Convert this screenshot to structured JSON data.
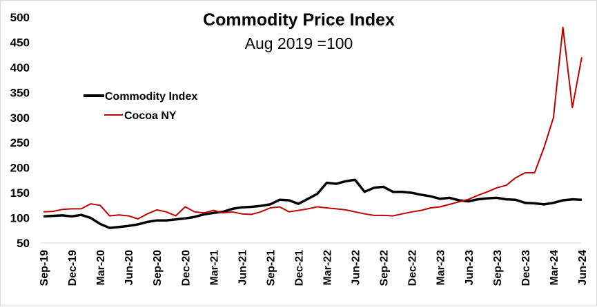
{
  "chart_data": {
    "type": "line",
    "title": "Commodity Price Index",
    "subtitle": "Aug 2019 =100",
    "xlabel": "",
    "ylabel": "",
    "ylim": [
      50,
      500
    ],
    "yticks": [
      "50",
      "100",
      "150",
      "200",
      "250",
      "300",
      "350",
      "400",
      "450",
      "500"
    ],
    "xticks": [
      "Sep-19",
      "Dec-19",
      "Mar-20",
      "Jun-20",
      "Sep-20",
      "Dec-20",
      "Mar-21",
      "Jun-21",
      "Sep-21",
      "Dec-21",
      "Mar-22",
      "Jun-22",
      "Sep-22",
      "Dec-22",
      "Mar-23",
      "Jun-23",
      "Sep-23",
      "Dec-23",
      "Mar-24",
      "Jun-24"
    ],
    "grid": false,
    "legend_position": "upper-left",
    "x": [
      "2019-09",
      "2019-10",
      "2019-11",
      "2019-12",
      "2020-01",
      "2020-02",
      "2020-03",
      "2020-04",
      "2020-05",
      "2020-06",
      "2020-07",
      "2020-08",
      "2020-09",
      "2020-10",
      "2020-11",
      "2020-12",
      "2021-01",
      "2021-02",
      "2021-03",
      "2021-04",
      "2021-05",
      "2021-06",
      "2021-07",
      "2021-08",
      "2021-09",
      "2021-10",
      "2021-11",
      "2021-12",
      "2022-01",
      "2022-02",
      "2022-03",
      "2022-04",
      "2022-05",
      "2022-06",
      "2022-07",
      "2022-08",
      "2022-09",
      "2022-10",
      "2022-11",
      "2022-12",
      "2023-01",
      "2023-02",
      "2023-03",
      "2023-04",
      "2023-05",
      "2023-06",
      "2023-07",
      "2023-08",
      "2023-09",
      "2023-10",
      "2023-11",
      "2023-12",
      "2024-01",
      "2024-02",
      "2024-03",
      "2024-04",
      "2024-05",
      "2024-06"
    ],
    "series": [
      {
        "name": "Commodity Index",
        "color": "#000000",
        "values": [
          103,
          104,
          105,
          103,
          106,
          100,
          88,
          80,
          82,
          84,
          87,
          92,
          95,
          95,
          97,
          99,
          102,
          107,
          110,
          112,
          118,
          121,
          122,
          124,
          127,
          136,
          135,
          128,
          138,
          148,
          170,
          168,
          173,
          176,
          152,
          160,
          162,
          152,
          152,
          150,
          146,
          143,
          138,
          140,
          135,
          133,
          137,
          139,
          140,
          137,
          136,
          130,
          129,
          127,
          130,
          135,
          137,
          136
        ]
      },
      {
        "name": "Cocoa NY",
        "color": "#C00000",
        "values": [
          112,
          113,
          117,
          118,
          118,
          128,
          125,
          104,
          106,
          104,
          98,
          108,
          116,
          112,
          104,
          122,
          112,
          110,
          115,
          110,
          112,
          108,
          107,
          112,
          120,
          122,
          112,
          115,
          118,
          122,
          120,
          118,
          116,
          112,
          108,
          105,
          105,
          104,
          108,
          112,
          115,
          120,
          122,
          127,
          132,
          137,
          145,
          152,
          160,
          165,
          180,
          190,
          190,
          240,
          300,
          480,
          320,
          420
        ]
      }
    ]
  }
}
